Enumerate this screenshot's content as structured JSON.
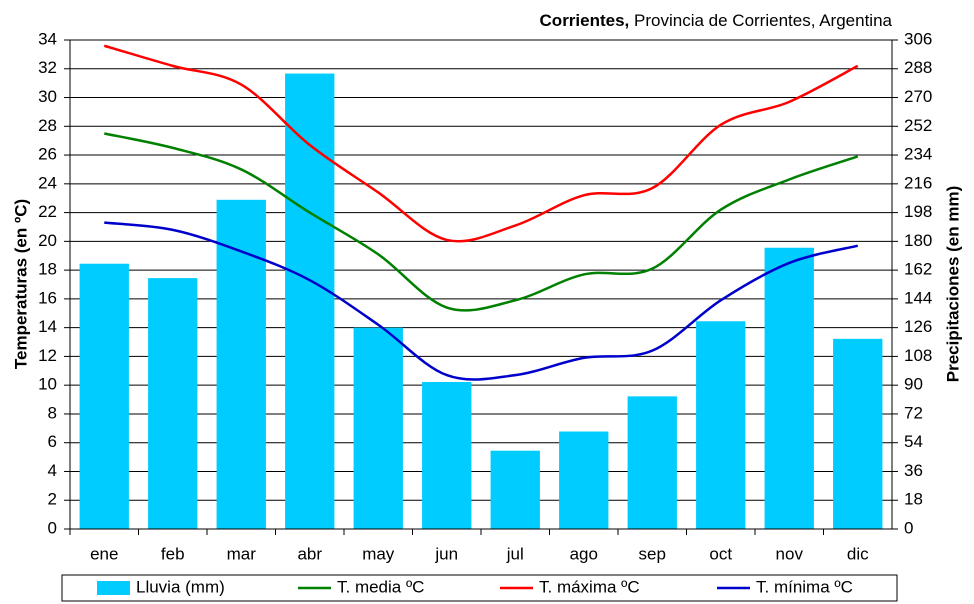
{
  "chart_data": {
    "type": "bar-line",
    "title_parts": [
      "Corrientes,",
      "Provincia de Corrientes, Argentina"
    ],
    "ylabel": "Temperaturas (en ºC)",
    "y2label": "Precipitaciones (en mm)",
    "categories": [
      "ene",
      "feb",
      "mar",
      "abr",
      "may",
      "jun",
      "jul",
      "ago",
      "sep",
      "oct",
      "nov",
      "dic"
    ],
    "series": [
      {
        "name": "Lluvia (mm)",
        "type": "bar",
        "axis": "y2",
        "color": "#00ccff",
        "values": [
          166,
          157,
          206,
          285,
          126,
          92,
          49,
          61,
          83,
          130,
          176,
          119
        ]
      },
      {
        "name": "T. media ºC",
        "type": "line",
        "color": "#008000",
        "values": [
          27.5,
          26.5,
          25.0,
          22.0,
          19.1,
          15.4,
          15.9,
          17.7,
          18.1,
          22.2,
          24.3,
          25.9
        ]
      },
      {
        "name": "T. máxima ºC",
        "type": "line",
        "color": "#ff0000",
        "values": [
          33.6,
          32.2,
          30.9,
          26.7,
          23.4,
          20.1,
          21.1,
          23.2,
          23.7,
          28.1,
          29.7,
          32.2
        ]
      },
      {
        "name": "T. mínima ºC",
        "type": "line",
        "color": "#0000cc",
        "values": [
          21.3,
          20.8,
          19.3,
          17.3,
          14.2,
          10.7,
          10.7,
          11.9,
          12.4,
          15.9,
          18.5,
          19.7
        ]
      }
    ],
    "ylim": [
      0,
      34
    ],
    "yticks": [
      0,
      2,
      4,
      6,
      8,
      10,
      12,
      14,
      16,
      18,
      20,
      22,
      24,
      26,
      28,
      30,
      32,
      34
    ],
    "y2lim": [
      0,
      306
    ],
    "y2ticks": [
      0,
      18,
      36,
      54,
      72,
      90,
      108,
      126,
      144,
      162,
      180,
      198,
      216,
      234,
      252,
      270,
      288,
      306
    ],
    "grid": true,
    "legend": "bottom"
  }
}
